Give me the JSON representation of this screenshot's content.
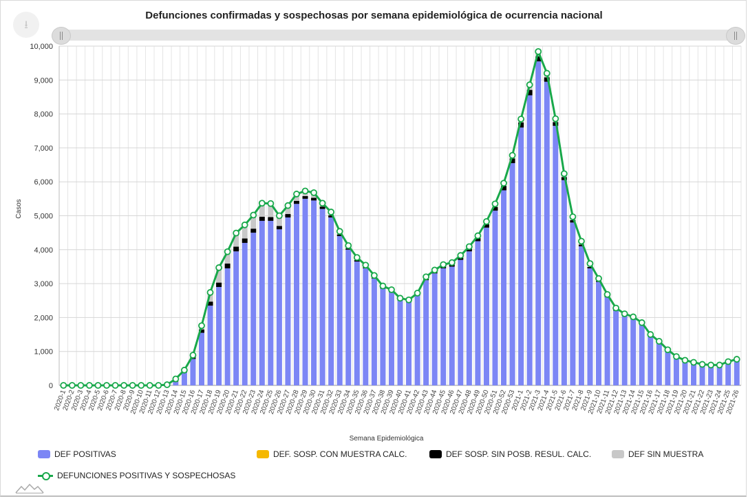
{
  "header": {
    "title": "Defunciones confirmadas y sospechosas por semana epidemiológica de ocurrencia nacional"
  },
  "toolbar": {
    "download_icon": "download-icon",
    "download_glyph": "⭳"
  },
  "chart_data": {
    "type": "bar",
    "title": "Defunciones confirmadas y sospechosas por semana epidemiológica de ocurrencia nacional",
    "xlabel": "Semana Epidemiológica",
    "ylabel": "Casos",
    "ylim": [
      0,
      10000
    ],
    "yticks": [
      0,
      1000,
      2000,
      3000,
      4000,
      5000,
      6000,
      7000,
      8000,
      9000,
      10000
    ],
    "ytick_labels": [
      "0",
      "1,000",
      "2,000",
      "3,000",
      "4,000",
      "5,000",
      "6,000",
      "7,000",
      "8,000",
      "9,000",
      "10,000"
    ],
    "grid": true,
    "legend_position": "bottom",
    "categories": [
      "2020-1",
      "2020-2",
      "2020-3",
      "2020-4",
      "2020-5",
      "2020-6",
      "2020-7",
      "2020-8",
      "2020-9",
      "2020-10",
      "2020-11",
      "2020-12",
      "2020-13",
      "2020-14",
      "2020-15",
      "2020-16",
      "2020-17",
      "2020-18",
      "2020-19",
      "2020-20",
      "2020-21",
      "2020-22",
      "2020-23",
      "2020-24",
      "2020-25",
      "2020-26",
      "2020-27",
      "2020-28",
      "2020-29",
      "2020-30",
      "2020-31",
      "2020-32",
      "2020-33",
      "2020-34",
      "2020-35",
      "2020-36",
      "2020-37",
      "2020-38",
      "2020-39",
      "2020-40",
      "2020-41",
      "2020-42",
      "2020-43",
      "2020-44",
      "2020-45",
      "2020-46",
      "2020-47",
      "2020-48",
      "2020-49",
      "2020-50",
      "2020-51",
      "2020-52",
      "2020-53",
      "2021-1",
      "2021-2",
      "2021-3",
      "2021-4",
      "2021-5",
      "2021-6",
      "2021-7",
      "2021-8",
      "2021-9",
      "2021-10",
      "2021-11",
      "2021-12",
      "2021-13",
      "2021-14",
      "2021-15",
      "2021-16",
      "2021-17",
      "2021-18",
      "2021-19",
      "2021-20",
      "2021-21",
      "2021-22",
      "2021-23",
      "2021-24",
      "2021-25",
      "2021-26"
    ],
    "series": [
      {
        "name": "DEF POSITIVAS",
        "color": "#7c86f5",
        "values": [
          0,
          0,
          0,
          0,
          0,
          0,
          0,
          0,
          0,
          0,
          0,
          0,
          10,
          100,
          380,
          780,
          1550,
          2350,
          2900,
          3450,
          3950,
          4200,
          4500,
          4850,
          4850,
          4600,
          4950,
          5350,
          5500,
          5450,
          5200,
          4950,
          4400,
          4000,
          3650,
          3450,
          3150,
          2850,
          2750,
          2500,
          2450,
          2650,
          3100,
          3300,
          3450,
          3500,
          3700,
          3950,
          4250,
          4650,
          5150,
          5750,
          6550,
          7600,
          8550,
          9550,
          8950,
          7650,
          6050,
          4800,
          4100,
          3450,
          3050,
          2600,
          2200,
          2050,
          1950,
          1800,
          1450,
          1250,
          1000,
          800,
          700,
          650,
          580,
          560,
          560,
          650,
          720
        ]
      },
      {
        "name": "DEF. SOSP. CON MUESTRA CALC.",
        "color": "#f5b800",
        "values": [
          0,
          0,
          0,
          0,
          0,
          0,
          0,
          0,
          0,
          0,
          0,
          0,
          0,
          0,
          0,
          0,
          0,
          0,
          0,
          0,
          0,
          0,
          0,
          0,
          0,
          0,
          0,
          0,
          0,
          0,
          0,
          0,
          0,
          0,
          0,
          0,
          0,
          0,
          0,
          0,
          0,
          0,
          0,
          0,
          0,
          0,
          0,
          0,
          0,
          0,
          0,
          0,
          0,
          0,
          0,
          0,
          0,
          0,
          0,
          0,
          0,
          0,
          0,
          0,
          0,
          0,
          0,
          0,
          0,
          0,
          0,
          0,
          0,
          0,
          0,
          0,
          0,
          0,
          0
        ]
      },
      {
        "name": "DEF SOSP. SIN POSB. RESUL. CALC.",
        "color": "#000000",
        "values": [
          0,
          0,
          0,
          0,
          0,
          0,
          0,
          0,
          0,
          0,
          0,
          0,
          0,
          10,
          30,
          60,
          100,
          120,
          130,
          140,
          140,
          130,
          120,
          120,
          110,
          100,
          100,
          90,
          80,
          80,
          70,
          60,
          50,
          40,
          40,
          35,
          30,
          30,
          30,
          30,
          30,
          30,
          40,
          40,
          50,
          60,
          70,
          80,
          90,
          100,
          110,
          130,
          140,
          150,
          160,
          150,
          130,
          110,
          90,
          70,
          50,
          40,
          30,
          25,
          20,
          15,
          15,
          10,
          10,
          10,
          10,
          10,
          10,
          10,
          5,
          5,
          5,
          5,
          5
        ]
      },
      {
        "name": "DEF SIN MUESTRA",
        "color": "#c8c8c8",
        "values": [
          0,
          0,
          0,
          0,
          0,
          0,
          0,
          0,
          0,
          0,
          0,
          0,
          10,
          80,
          40,
          50,
          110,
          270,
          440,
          350,
          400,
          400,
          400,
          400,
          400,
          300,
          250,
          200,
          150,
          150,
          100,
          100,
          90,
          80,
          80,
          60,
          60,
          50,
          40,
          40,
          40,
          40,
          60,
          60,
          60,
          60,
          60,
          60,
          70,
          80,
          90,
          80,
          90,
          100,
          150,
          140,
          120,
          100,
          100,
          100,
          100,
          100,
          70,
          55,
          60,
          45,
          55,
          40,
          40,
          40,
          40,
          40,
          30,
          20,
          35,
          35,
          35,
          45,
          45
        ]
      }
    ],
    "line": {
      "name": "DEFUNCIONES POSITIVAS Y SOSPECHOSAS",
      "color": "#18a84a",
      "values": [
        0,
        0,
        0,
        0,
        0,
        0,
        0,
        0,
        0,
        0,
        0,
        0,
        20,
        190,
        450,
        890,
        1760,
        2740,
        3470,
        3940,
        4490,
        4730,
        5020,
        5370,
        5360,
        5000,
        5300,
        5640,
        5730,
        5680,
        5370,
        5110,
        4540,
        4120,
        3770,
        3545,
        3240,
        2930,
        2820,
        2570,
        2520,
        2720,
        3200,
        3400,
        3560,
        3620,
        3830,
        4090,
        4410,
        4830,
        5350,
        5960,
        6780,
        7850,
        8860,
        9840,
        9200,
        7860,
        6240,
        4970,
        4250,
        3590,
        3150,
        2680,
        2280,
        2110,
        2020,
        1850,
        1500,
        1300,
        1050,
        850,
        740,
        680,
        620,
        600,
        600,
        700,
        770
      ]
    }
  },
  "legend": [
    {
      "label": "DEF POSITIVAS",
      "color": "#7c86f5"
    },
    {
      "label": "DEF. SOSP. CON MUESTRA CALC.",
      "color": "#f5b800"
    },
    {
      "label": "DEF SOSP. SIN POSB. RESUL. CALC.",
      "color": "#000000"
    },
    {
      "label": "DEF SIN MUESTRA",
      "color": "#c8c8c8"
    },
    {
      "label": "DEFUNCIONES POSITIVAS Y SOSPECHOSAS",
      "color": "#18a84a"
    }
  ]
}
